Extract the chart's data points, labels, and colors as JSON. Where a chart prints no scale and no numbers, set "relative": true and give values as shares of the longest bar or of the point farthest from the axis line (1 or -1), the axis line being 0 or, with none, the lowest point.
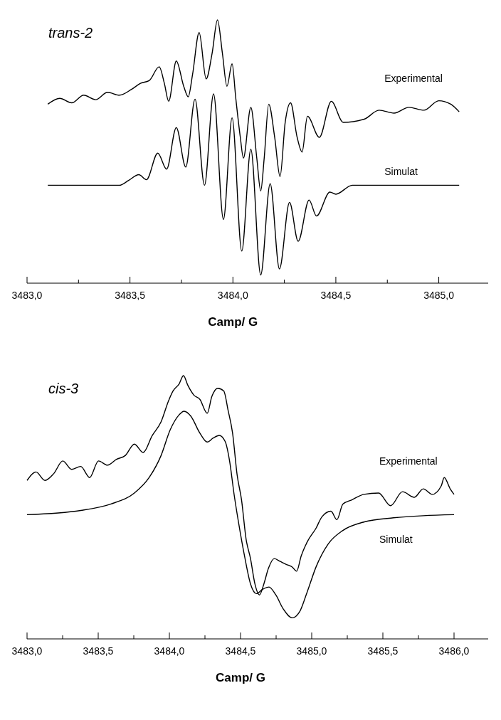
{
  "chart_data": [
    {
      "type": "line",
      "title": "trans-2",
      "xlabel": "Camp/ G",
      "relative": true,
      "legend": false,
      "line_style": "solid",
      "xlim": [
        3483,
        3485.24
      ],
      "xticks": [
        {
          "value": 3483,
          "label": "3483,0"
        },
        {
          "value": 3483.25,
          "label": null
        },
        {
          "value": 3483.5,
          "label": "3483,5"
        },
        {
          "value": 3483.75,
          "label": null
        },
        {
          "value": 3484,
          "label": "3484,0"
        },
        {
          "value": 3484.25,
          "label": null
        },
        {
          "value": 3484.5,
          "label": "3484,5"
        },
        {
          "value": 3484.75,
          "label": null
        },
        {
          "value": 3485,
          "label": "3485,0"
        }
      ],
      "series": [
        {
          "name": "Experimental",
          "color": "#000000",
          "x": [
            3483.101,
            3483.159,
            3483.217,
            3483.275,
            3483.333,
            3483.391,
            3483.449,
            3483.507,
            3483.551,
            3483.594,
            3483.642,
            3483.667,
            3483.688,
            3483.725,
            3483.761,
            3483.783,
            3483.804,
            3483.836,
            3483.87,
            3483.899,
            3483.925,
            3483.949,
            3483.971,
            3483.996,
            3484.014,
            3484.036,
            3484.051,
            3484.087,
            3484.116,
            3484.135,
            3484.152,
            3484.174,
            3484.203,
            3484.229,
            3484.254,
            3484.28,
            3484.312,
            3484.336,
            3484.362,
            3484.42,
            3484.478,
            3484.536,
            3484.638,
            3484.71,
            3484.783,
            3484.855,
            3484.928,
            3485.0,
            3485.058,
            3485.099
          ],
          "values": [
            0.68,
            0.702,
            0.685,
            0.714,
            0.697,
            0.725,
            0.714,
            0.736,
            0.759,
            0.77,
            0.822,
            0.759,
            0.691,
            0.844,
            0.748,
            0.708,
            0.793,
            0.952,
            0.776,
            0.873,
            1.0,
            0.873,
            0.748,
            0.833,
            0.702,
            0.554,
            0.475,
            0.668,
            0.475,
            0.35,
            0.475,
            0.68,
            0.554,
            0.405,
            0.611,
            0.685,
            0.554,
            0.498,
            0.634,
            0.554,
            0.691,
            0.611,
            0.623,
            0.657,
            0.646,
            0.668,
            0.657,
            0.693,
            0.68,
            0.651
          ]
        },
        {
          "name": "Simulat",
          "color": "#000000",
          "x": [
            3483.101,
            3483.449,
            3483.493,
            3483.543,
            3483.58,
            3483.635,
            3483.678,
            3483.725,
            3483.771,
            3483.816,
            3483.862,
            3483.906,
            3483.954,
            3483.996,
            3484.043,
            3484.087,
            3484.135,
            3484.181,
            3484.226,
            3484.275,
            3484.317,
            3484.37,
            3484.406,
            3484.471,
            3484.5,
            3484.58,
            3485.099
          ],
          "values": [
            0.372,
            0.372,
            0.39,
            0.412,
            0.393,
            0.494,
            0.433,
            0.591,
            0.441,
            0.699,
            0.372,
            0.719,
            0.242,
            0.628,
            0.122,
            0.509,
            0.031,
            0.378,
            0.054,
            0.307,
            0.159,
            0.316,
            0.255,
            0.346,
            0.338,
            0.372,
            0.372
          ]
        }
      ]
    },
    {
      "type": "line",
      "title": "cis-3",
      "xlabel": "Camp/ G",
      "relative": true,
      "legend": false,
      "line_style": "solid",
      "xlim": [
        3483,
        3486.24
      ],
      "xticks": [
        {
          "value": 3483,
          "label": "3483,0"
        },
        {
          "value": 3483.25,
          "label": null
        },
        {
          "value": 3483.5,
          "label": "3483,5"
        },
        {
          "value": 3483.75,
          "label": null
        },
        {
          "value": 3484,
          "label": "3484,0"
        },
        {
          "value": 3484.25,
          "label": null
        },
        {
          "value": 3484.5,
          "label": "3484,5"
        },
        {
          "value": 3484.75,
          "label": null
        },
        {
          "value": 3485,
          "label": "3485,0"
        },
        {
          "value": 3485.25,
          "label": null
        },
        {
          "value": 3485.5,
          "label": "3485,5"
        },
        {
          "value": 3485.75,
          "label": null
        },
        {
          "value": 3486,
          "label": "3486,0"
        }
      ],
      "series": [
        {
          "name": "Experimental",
          "color": "#000000",
          "x": [
            3483.0,
            3483.063,
            3483.126,
            3483.188,
            3483.251,
            3483.314,
            3483.377,
            3483.44,
            3483.502,
            3483.565,
            3483.628,
            3483.691,
            3483.754,
            3483.816,
            3483.879,
            3483.942,
            3483.994,
            3484.026,
            3484.068,
            3484.099,
            3484.13,
            3484.172,
            3484.214,
            3484.266,
            3484.298,
            3484.34,
            3484.382,
            3484.413,
            3484.444,
            3484.476,
            3484.507,
            3484.539,
            3484.57,
            3484.601,
            3484.633,
            3484.664,
            3484.696,
            3484.737,
            3484.779,
            3484.821,
            3484.863,
            3484.894,
            3484.926,
            3484.968,
            3485.031,
            3485.072,
            3485.135,
            3485.177,
            3485.219,
            3485.282,
            3485.366,
            3485.47,
            3485.554,
            3485.638,
            3485.721,
            3485.784,
            3485.847,
            3485.91,
            3485.931,
            3485.973,
            3486.0
          ],
          "values": [
            0.602,
            0.634,
            0.602,
            0.628,
            0.676,
            0.644,
            0.655,
            0.613,
            0.676,
            0.66,
            0.682,
            0.697,
            0.74,
            0.708,
            0.772,
            0.825,
            0.904,
            0.942,
            0.968,
            1.0,
            0.963,
            0.926,
            0.91,
            0.857,
            0.92,
            0.952,
            0.942,
            0.867,
            0.782,
            0.623,
            0.528,
            0.379,
            0.305,
            0.209,
            0.167,
            0.209,
            0.268,
            0.305,
            0.294,
            0.283,
            0.273,
            0.257,
            0.315,
            0.368,
            0.421,
            0.464,
            0.485,
            0.453,
            0.512,
            0.528,
            0.549,
            0.554,
            0.506,
            0.559,
            0.538,
            0.57,
            0.549,
            0.581,
            0.613,
            0.57,
            0.549
          ]
        },
        {
          "name": "Simulat",
          "color": "#000000",
          "x": [
            3483.0,
            3483.377,
            3483.586,
            3483.754,
            3483.858,
            3483.942,
            3484.005,
            3484.068,
            3484.103,
            3484.151,
            3484.214,
            3484.266,
            3484.308,
            3484.35,
            3484.392,
            3484.423,
            3484.455,
            3484.486,
            3484.528,
            3484.57,
            3484.612,
            3484.654,
            3484.7,
            3484.748,
            3484.8,
            3484.863,
            3484.915,
            3484.968,
            3485.031,
            3485.114,
            3485.219,
            3485.366,
            3485.575,
            3485.784,
            3486.0
          ],
          "values": [
            0.472,
            0.488,
            0.512,
            0.554,
            0.613,
            0.697,
            0.793,
            0.851,
            0.865,
            0.846,
            0.782,
            0.748,
            0.763,
            0.773,
            0.75,
            0.676,
            0.548,
            0.442,
            0.315,
            0.209,
            0.172,
            0.188,
            0.197,
            0.167,
            0.114,
            0.08,
            0.103,
            0.178,
            0.274,
            0.359,
            0.412,
            0.444,
            0.46,
            0.468,
            0.472
          ]
        }
      ]
    }
  ]
}
